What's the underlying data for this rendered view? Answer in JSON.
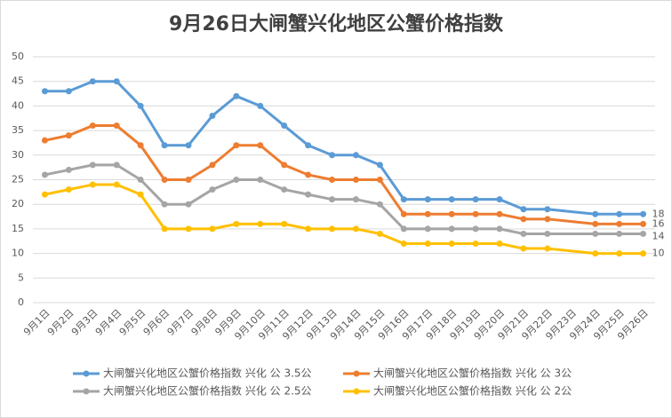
{
  "chart_data": {
    "type": "line",
    "title": "9月26日大闸蟹兴化地区公蟹价格指数",
    "categories": [
      "9月1日",
      "9月2日",
      "9月3日",
      "9月4日",
      "9月5日",
      "9月6日",
      "9月7日",
      "9月8日",
      "9月9日",
      "9月10日",
      "9月11日",
      "9月12日",
      "9月13日",
      "9月14日",
      "9月15日",
      "9月16日",
      "9月17日",
      "9月18日",
      "9月19日",
      "9月20日",
      "9月21日",
      "9月22日",
      "9月23日",
      "9月24日",
      "9月25日",
      "9月26日"
    ],
    "series": [
      {
        "name": "大闸蟹兴化地区公蟹价格指数 兴化 公 3.5公",
        "color": "#5b9bd5",
        "values": [
          43,
          43,
          45,
          45,
          40,
          32,
          32,
          38,
          42,
          40,
          36,
          32,
          30,
          30,
          28,
          21,
          21,
          21,
          21,
          21,
          19,
          19,
          null,
          18,
          18,
          18
        ]
      },
      {
        "name": "大闸蟹兴化地区公蟹价格指数 兴化 公 3公",
        "color": "#ed7d31",
        "values": [
          33,
          34,
          36,
          36,
          32,
          25,
          25,
          28,
          32,
          32,
          28,
          26,
          25,
          25,
          25,
          18,
          18,
          18,
          18,
          18,
          17,
          17,
          null,
          16,
          16,
          16
        ]
      },
      {
        "name": "大闸蟹兴化地区公蟹价格指数 兴化 公 2.5公",
        "color": "#a5a5a5",
        "values": [
          26,
          27,
          28,
          28,
          25,
          20,
          20,
          23,
          25,
          25,
          23,
          22,
          21,
          21,
          20,
          15,
          15,
          15,
          15,
          15,
          14,
          14,
          null,
          14,
          14,
          14
        ]
      },
      {
        "name": "大闸蟹兴化地区公蟹价格指数 兴化 公 2公",
        "color": "#ffc000",
        "values": [
          22,
          23,
          24,
          24,
          22,
          15,
          15,
          15,
          16,
          16,
          16,
          15,
          15,
          15,
          14,
          12,
          12,
          12,
          12,
          12,
          11,
          11,
          null,
          10,
          10,
          10
        ]
      }
    ],
    "ylim": [
      0,
      50
    ],
    "yticks": [
      0,
      5,
      10,
      15,
      20,
      25,
      30,
      35,
      40,
      45,
      50
    ],
    "grid": true,
    "span_gaps": true,
    "end_labels": true
  }
}
